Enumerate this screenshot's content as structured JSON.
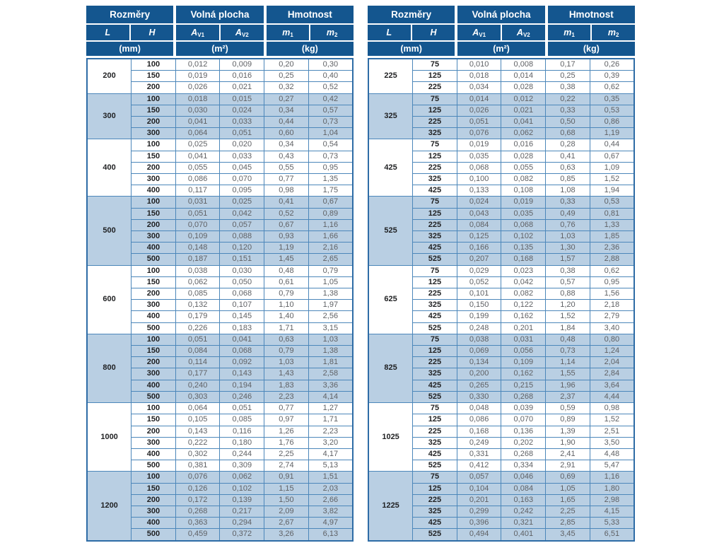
{
  "header": {
    "groups": [
      {
        "label": "Rozměry",
        "span": 2
      },
      {
        "label": "Volná plocha",
        "span": 2
      },
      {
        "label": "Hmotnost",
        "span": 2
      }
    ],
    "symbols": [
      {
        "base": "L",
        "sub": ""
      },
      {
        "base": "H",
        "sub": ""
      },
      {
        "base": "A",
        "sub": "V1"
      },
      {
        "base": "A",
        "sub": "V2"
      },
      {
        "base": "m",
        "sub": "1"
      },
      {
        "base": "m",
        "sub": "2"
      }
    ],
    "units": [
      {
        "label": "(mm)"
      },
      {
        "label": "(m²)"
      },
      {
        "label": "(kg)"
      }
    ]
  },
  "colors": {
    "header_bg": "#14568f",
    "band_blue": "#b9cfe3",
    "grid_border": "#4c87ba",
    "value_text": "#5f6165"
  },
  "tables": [
    {
      "id": "left",
      "groups": [
        {
          "L": "200",
          "rows": [
            [
              "100",
              "0,012",
              "0,009",
              "0,20",
              "0,30"
            ],
            [
              "150",
              "0,019",
              "0,016",
              "0,25",
              "0,40"
            ],
            [
              "200",
              "0,026",
              "0,021",
              "0,32",
              "0,52"
            ]
          ]
        },
        {
          "L": "300",
          "rows": [
            [
              "100",
              "0,018",
              "0,015",
              "0,27",
              "0,42"
            ],
            [
              "150",
              "0,030",
              "0,024",
              "0,34",
              "0,57"
            ],
            [
              "200",
              "0,041",
              "0,033",
              "0,44",
              "0,73"
            ],
            [
              "300",
              "0,064",
              "0,051",
              "0,60",
              "1,04"
            ]
          ]
        },
        {
          "L": "400",
          "rows": [
            [
              "100",
              "0,025",
              "0,020",
              "0,34",
              "0,54"
            ],
            [
              "150",
              "0,041",
              "0,033",
              "0,43",
              "0,73"
            ],
            [
              "200",
              "0,055",
              "0,045",
              "0,55",
              "0,95"
            ],
            [
              "300",
              "0,086",
              "0,070",
              "0,77",
              "1,35"
            ],
            [
              "400",
              "0,117",
              "0,095",
              "0,98",
              "1,75"
            ]
          ]
        },
        {
          "L": "500",
          "rows": [
            [
              "100",
              "0,031",
              "0,025",
              "0,41",
              "0,67"
            ],
            [
              "150",
              "0,051",
              "0,042",
              "0,52",
              "0,89"
            ],
            [
              "200",
              "0,070",
              "0,057",
              "0,67",
              "1,16"
            ],
            [
              "300",
              "0,109",
              "0,088",
              "0,93",
              "1,66"
            ],
            [
              "400",
              "0,148",
              "0,120",
              "1,19",
              "2,16"
            ],
            [
              "500",
              "0,187",
              "0,151",
              "1,45",
              "2,65"
            ]
          ]
        },
        {
          "L": "600",
          "rows": [
            [
              "100",
              "0,038",
              "0,030",
              "0,48",
              "0,79"
            ],
            [
              "150",
              "0,062",
              "0,050",
              "0,61",
              "1,05"
            ],
            [
              "200",
              "0,085",
              "0,068",
              "0,79",
              "1,38"
            ],
            [
              "300",
              "0,132",
              "0,107",
              "1,10",
              "1,97"
            ],
            [
              "400",
              "0,179",
              "0,145",
              "1,40",
              "2,56"
            ],
            [
              "500",
              "0,226",
              "0,183",
              "1,71",
              "3,15"
            ]
          ]
        },
        {
          "L": "800",
          "rows": [
            [
              "100",
              "0,051",
              "0,041",
              "0,63",
              "1,03"
            ],
            [
              "150",
              "0,084",
              "0,068",
              "0,79",
              "1,38"
            ],
            [
              "200",
              "0,114",
              "0,092",
              "1,03",
              "1,81"
            ],
            [
              "300",
              "0,177",
              "0,143",
              "1,43",
              "2,58"
            ],
            [
              "400",
              "0,240",
              "0,194",
              "1,83",
              "3,36"
            ],
            [
              "500",
              "0,303",
              "0,246",
              "2,23",
              "4,14"
            ]
          ]
        },
        {
          "L": "1000",
          "rows": [
            [
              "100",
              "0,064",
              "0,051",
              "0,77",
              "1,27"
            ],
            [
              "150",
              "0,105",
              "0,085",
              "0,97",
              "1,71"
            ],
            [
              "200",
              "0,143",
              "0,116",
              "1,26",
              "2,23"
            ],
            [
              "300",
              "0,222",
              "0,180",
              "1,76",
              "3,20"
            ],
            [
              "400",
              "0,302",
              "0,244",
              "2,25",
              "4,17"
            ],
            [
              "500",
              "0,381",
              "0,309",
              "2,74",
              "5,13"
            ]
          ]
        },
        {
          "L": "1200",
          "rows": [
            [
              "100",
              "0,076",
              "0,062",
              "0,91",
              "1,51"
            ],
            [
              "150",
              "0,126",
              "0,102",
              "1,15",
              "2,03"
            ],
            [
              "200",
              "0,172",
              "0,139",
              "1,50",
              "2,66"
            ],
            [
              "300",
              "0,268",
              "0,217",
              "2,09",
              "3,82"
            ],
            [
              "400",
              "0,363",
              "0,294",
              "2,67",
              "4,97"
            ],
            [
              "500",
              "0,459",
              "0,372",
              "3,26",
              "6,13"
            ]
          ]
        }
      ]
    },
    {
      "id": "right",
      "groups": [
        {
          "L": "225",
          "rows": [
            [
              "75",
              "0,010",
              "0,008",
              "0,17",
              "0,26"
            ],
            [
              "125",
              "0,018",
              "0,014",
              "0,25",
              "0,39"
            ],
            [
              "225",
              "0,034",
              "0,028",
              "0,38",
              "0,62"
            ]
          ]
        },
        {
          "L": "325",
          "rows": [
            [
              "75",
              "0,014",
              "0,012",
              "0,22",
              "0,35"
            ],
            [
              "125",
              "0,026",
              "0,021",
              "0,33",
              "0,53"
            ],
            [
              "225",
              "0,051",
              "0,041",
              "0,50",
              "0,86"
            ],
            [
              "325",
              "0,076",
              "0,062",
              "0,68",
              "1,19"
            ]
          ]
        },
        {
          "L": "425",
          "rows": [
            [
              "75",
              "0,019",
              "0,016",
              "0,28",
              "0,44"
            ],
            [
              "125",
              "0,035",
              "0,028",
              "0,41",
              "0,67"
            ],
            [
              "225",
              "0,068",
              "0,055",
              "0,63",
              "1,09"
            ],
            [
              "325",
              "0,100",
              "0,082",
              "0,85",
              "1,52"
            ],
            [
              "425",
              "0,133",
              "0,108",
              "1,08",
              "1,94"
            ]
          ]
        },
        {
          "L": "525",
          "rows": [
            [
              "75",
              "0,024",
              "0,019",
              "0,33",
              "0,53"
            ],
            [
              "125",
              "0,043",
              "0,035",
              "0,49",
              "0,81"
            ],
            [
              "225",
              "0,084",
              "0,068",
              "0,76",
              "1,33"
            ],
            [
              "325",
              "0,125",
              "0,102",
              "1,03",
              "1,85"
            ],
            [
              "425",
              "0,166",
              "0,135",
              "1,30",
              "2,36"
            ],
            [
              "525",
              "0,207",
              "0,168",
              "1,57",
              "2,88"
            ]
          ]
        },
        {
          "L": "625",
          "rows": [
            [
              "75",
              "0,029",
              "0,023",
              "0,38",
              "0,62"
            ],
            [
              "125",
              "0,052",
              "0,042",
              "0,57",
              "0,95"
            ],
            [
              "225",
              "0,101",
              "0,082",
              "0,88",
              "1,56"
            ],
            [
              "325",
              "0,150",
              "0,122",
              "1,20",
              "2,18"
            ],
            [
              "425",
              "0,199",
              "0,162",
              "1,52",
              "2,79"
            ],
            [
              "525",
              "0,248",
              "0,201",
              "1,84",
              "3,40"
            ]
          ]
        },
        {
          "L": "825",
          "rows": [
            [
              "75",
              "0,038",
              "0,031",
              "0,48",
              "0,80"
            ],
            [
              "125",
              "0,069",
              "0,056",
              "0,73",
              "1,24"
            ],
            [
              "225",
              "0,134",
              "0,109",
              "1,14",
              "2,04"
            ],
            [
              "325",
              "0,200",
              "0,162",
              "1,55",
              "2,84"
            ],
            [
              "425",
              "0,265",
              "0,215",
              "1,96",
              "3,64"
            ],
            [
              "525",
              "0,330",
              "0,268",
              "2,37",
              "4,44"
            ]
          ]
        },
        {
          "L": "1025",
          "rows": [
            [
              "75",
              "0,048",
              "0,039",
              "0,59",
              "0,98"
            ],
            [
              "125",
              "0,086",
              "0,070",
              "0,89",
              "1,52"
            ],
            [
              "225",
              "0,168",
              "0,136",
              "1,39",
              "2,51"
            ],
            [
              "325",
              "0,249",
              "0,202",
              "1,90",
              "3,50"
            ],
            [
              "425",
              "0,331",
              "0,268",
              "2,41",
              "4,48"
            ],
            [
              "525",
              "0,412",
              "0,334",
              "2,91",
              "5,47"
            ]
          ]
        },
        {
          "L": "1225",
          "rows": [
            [
              "75",
              "0,057",
              "0,046",
              "0,69",
              "1,16"
            ],
            [
              "125",
              "0,104",
              "0,084",
              "1,05",
              "1,80"
            ],
            [
              "225",
              "0,201",
              "0,163",
              "1,65",
              "2,98"
            ],
            [
              "325",
              "0,299",
              "0,242",
              "2,25",
              "4,15"
            ],
            [
              "425",
              "0,396",
              "0,321",
              "2,85",
              "5,33"
            ],
            [
              "525",
              "0,494",
              "0,401",
              "3,45",
              "6,51"
            ]
          ]
        }
      ]
    }
  ]
}
